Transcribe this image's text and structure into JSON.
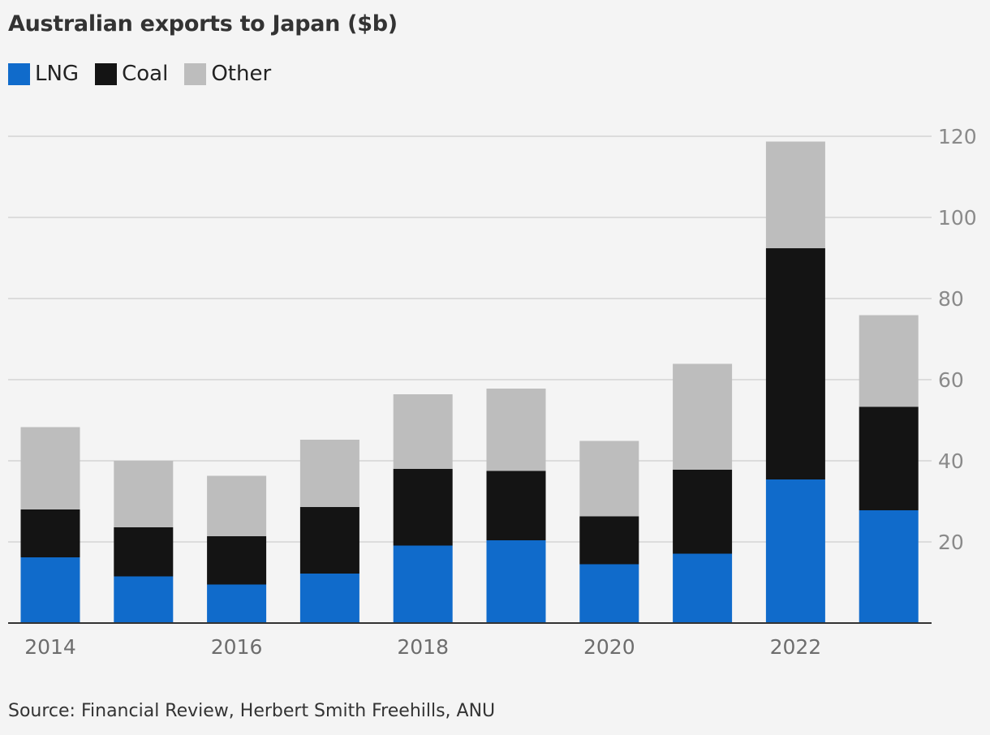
{
  "chart_data": {
    "type": "bar",
    "stacked": true,
    "title": "Australian exports to Japan ($b)",
    "source": "Source: Financial Review, Herbert Smith Freehills, ANU",
    "categories": [
      "2014",
      "2015",
      "2016",
      "2017",
      "2018",
      "2019",
      "2020",
      "2021",
      "2022",
      "2023"
    ],
    "x_tick_labels": [
      "2014",
      "",
      "2016",
      "",
      "2018",
      "",
      "2020",
      "",
      "2022",
      ""
    ],
    "series": [
      {
        "name": "LNG",
        "color": "#106bcb",
        "values": [
          16.2,
          11.5,
          9.5,
          12.2,
          19.1,
          20.4,
          14.5,
          17.1,
          35.4,
          27.8
        ]
      },
      {
        "name": "Coal",
        "color": "#141414",
        "values": [
          11.8,
          12.1,
          11.9,
          16.4,
          18.9,
          17.1,
          11.8,
          20.7,
          57.0,
          25.5
        ]
      },
      {
        "name": "Other",
        "color": "#bdbdbd",
        "values": [
          20.3,
          16.4,
          14.9,
          16.6,
          18.4,
          20.3,
          18.6,
          26.1,
          26.3,
          22.6
        ]
      }
    ],
    "ylim": [
      0,
      120
    ],
    "yticks": [
      20,
      40,
      60,
      80,
      100,
      120
    ],
    "grid": true,
    "legend": "top-left",
    "xlabel": "",
    "ylabel": ""
  }
}
